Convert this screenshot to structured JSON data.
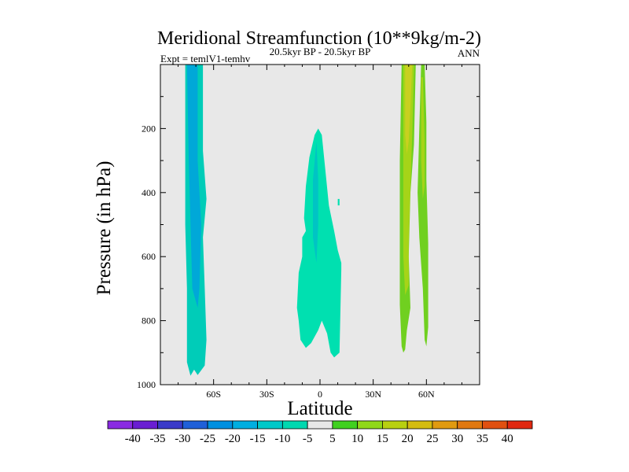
{
  "chart_data": {
    "type": "contour",
    "title": "Meridional Streamfunction (10**9kg/m-2)",
    "subtitle_left": "Expt = temlV1-temhv",
    "subtitle_center": "20.5kyr BP - 20.5kyr BP",
    "subtitle_right": "ANN",
    "xlabel": "Latitude",
    "ylabel": "Pressure (in hPa)",
    "xlim": [
      -90,
      90
    ],
    "ylim": [
      1000,
      0
    ],
    "x_ticks": [
      {
        "value": -60,
        "label": "60S"
      },
      {
        "value": -30,
        "label": "30S"
      },
      {
        "value": 0,
        "label": "0"
      },
      {
        "value": 30,
        "label": "30N"
      },
      {
        "value": 60,
        "label": "60N"
      }
    ],
    "y_ticks": [
      {
        "value": 200,
        "label": "200"
      },
      {
        "value": 400,
        "label": "400"
      },
      {
        "value": 600,
        "label": "600"
      },
      {
        "value": 800,
        "label": "800"
      },
      {
        "value": 1000,
        "label": "1000"
      }
    ],
    "background_color": "#e8e8e8",
    "regions": [
      {
        "name": "south-polar-cell-outer",
        "level": "-15 to -10",
        "color": "#00ccb8",
        "points": [
          [
            -76,
            0
          ],
          [
            -66,
            0
          ],
          [
            -66,
            270
          ],
          [
            -64,
            420
          ],
          [
            -66,
            540
          ],
          [
            -65,
            700
          ],
          [
            -64,
            860
          ],
          [
            -65,
            940
          ],
          [
            -69,
            970
          ],
          [
            -71,
            953
          ],
          [
            -73,
            972
          ],
          [
            -75,
            930
          ],
          [
            -75,
            700
          ],
          [
            -76,
            500
          ]
        ]
      },
      {
        "name": "south-polar-cell-inner",
        "level": "-20 to -15",
        "color": "#00a8d8",
        "points": [
          [
            -75,
            0
          ],
          [
            -69,
            0
          ],
          [
            -69,
            300
          ],
          [
            -67,
            500
          ],
          [
            -68,
            700
          ],
          [
            -69,
            760
          ],
          [
            -72,
            700
          ],
          [
            -73,
            500
          ],
          [
            -74,
            300
          ]
        ]
      },
      {
        "name": "equatorial-cell-outer",
        "level": "-10 to -5",
        "color": "#00e0b0",
        "points": [
          [
            -1,
            200
          ],
          [
            -3,
            220
          ],
          [
            -6,
            290
          ],
          [
            -8,
            380
          ],
          [
            -9,
            480
          ],
          [
            -8,
            520
          ],
          [
            -10,
            540
          ],
          [
            -10,
            600
          ],
          [
            -12,
            650
          ],
          [
            -13,
            760
          ],
          [
            -12,
            800
          ],
          [
            -11,
            860
          ],
          [
            -8,
            885
          ],
          [
            -5,
            870
          ],
          [
            -1,
            830
          ],
          [
            1,
            800
          ],
          [
            4,
            840
          ],
          [
            6,
            900
          ],
          [
            8,
            915
          ],
          [
            11,
            900
          ],
          [
            12,
            640
          ],
          [
            12,
            620
          ],
          [
            10,
            580
          ],
          [
            8,
            520
          ],
          [
            5,
            440
          ],
          [
            3,
            330
          ],
          [
            1,
            220
          ]
        ]
      },
      {
        "name": "equatorial-cell-inner",
        "level": "-15 to -10",
        "color": "#00c4c4",
        "points": [
          [
            -2,
            240
          ],
          [
            -4,
            360
          ],
          [
            -4,
            540
          ],
          [
            -3,
            580
          ],
          [
            -2,
            620
          ],
          [
            -1,
            500
          ],
          [
            -1,
            360
          ]
        ]
      },
      {
        "name": "equatorial-spot",
        "level": "-10 to -5",
        "color": "#00e0b0",
        "points": [
          [
            10,
            420
          ],
          [
            11,
            420
          ],
          [
            11,
            440
          ],
          [
            10,
            440
          ]
        ]
      },
      {
        "name": "north-cell-west-outer",
        "level": "5 to 10",
        "color": "#70d020",
        "points": [
          [
            46,
            0
          ],
          [
            54,
            0
          ],
          [
            53,
            250
          ],
          [
            51,
            400
          ],
          [
            50,
            600
          ],
          [
            51,
            760
          ],
          [
            49,
            830
          ],
          [
            48,
            890
          ],
          [
            47,
            900
          ],
          [
            46,
            880
          ],
          [
            45,
            750
          ],
          [
            45,
            300
          ]
        ]
      },
      {
        "name": "north-cell-west-inner",
        "level": "10 to 15",
        "color": "#a6d418",
        "points": [
          [
            47,
            0
          ],
          [
            53,
            0
          ],
          [
            52,
            220
          ],
          [
            51,
            380
          ],
          [
            50,
            560
          ],
          [
            50,
            690
          ],
          [
            48,
            720
          ],
          [
            47,
            600
          ],
          [
            47,
            300
          ]
        ]
      },
      {
        "name": "north-cell-core",
        "level": "15 to 20",
        "color": "#c8d020",
        "points": [
          [
            48,
            0
          ],
          [
            52,
            0
          ],
          [
            51,
            130
          ],
          [
            50,
            240
          ],
          [
            49,
            280
          ],
          [
            48,
            220
          ],
          [
            48,
            80
          ]
        ]
      },
      {
        "name": "north-cell-east-outer",
        "level": "5 to 10",
        "color": "#70d020",
        "points": [
          [
            57,
            0
          ],
          [
            59,
            0
          ],
          [
            60,
            180
          ],
          [
            60,
            360
          ],
          [
            61,
            560
          ],
          [
            61,
            820
          ],
          [
            60,
            880
          ],
          [
            59,
            860
          ],
          [
            58,
            700
          ],
          [
            56,
            540
          ],
          [
            55,
            400
          ],
          [
            56,
            200
          ]
        ]
      },
      {
        "name": "north-cell-east-inner",
        "level": "10 to 15",
        "color": "#a6d418",
        "points": [
          [
            57,
            40
          ],
          [
            58,
            40
          ],
          [
            59,
            240
          ],
          [
            59,
            380
          ],
          [
            58,
            420
          ],
          [
            57,
            300
          ]
        ]
      }
    ],
    "colorbar": {
      "labels": [
        "-40",
        "-35",
        "-30",
        "-25",
        "-20",
        "-15",
        "-10",
        "-5",
        "5",
        "10",
        "15",
        "20",
        "25",
        "30",
        "35",
        "40"
      ],
      "colors": [
        "#8a2be2",
        "#6a1ed2",
        "#3a3ac8",
        "#2060d8",
        "#0090e0",
        "#00aee0",
        "#00c8c8",
        "#00d8b0",
        "#e8e8e8",
        "#40d020",
        "#90d818",
        "#b8d010",
        "#d4bc10",
        "#e09a10",
        "#e07810",
        "#e05010",
        "#e02810"
      ]
    }
  }
}
